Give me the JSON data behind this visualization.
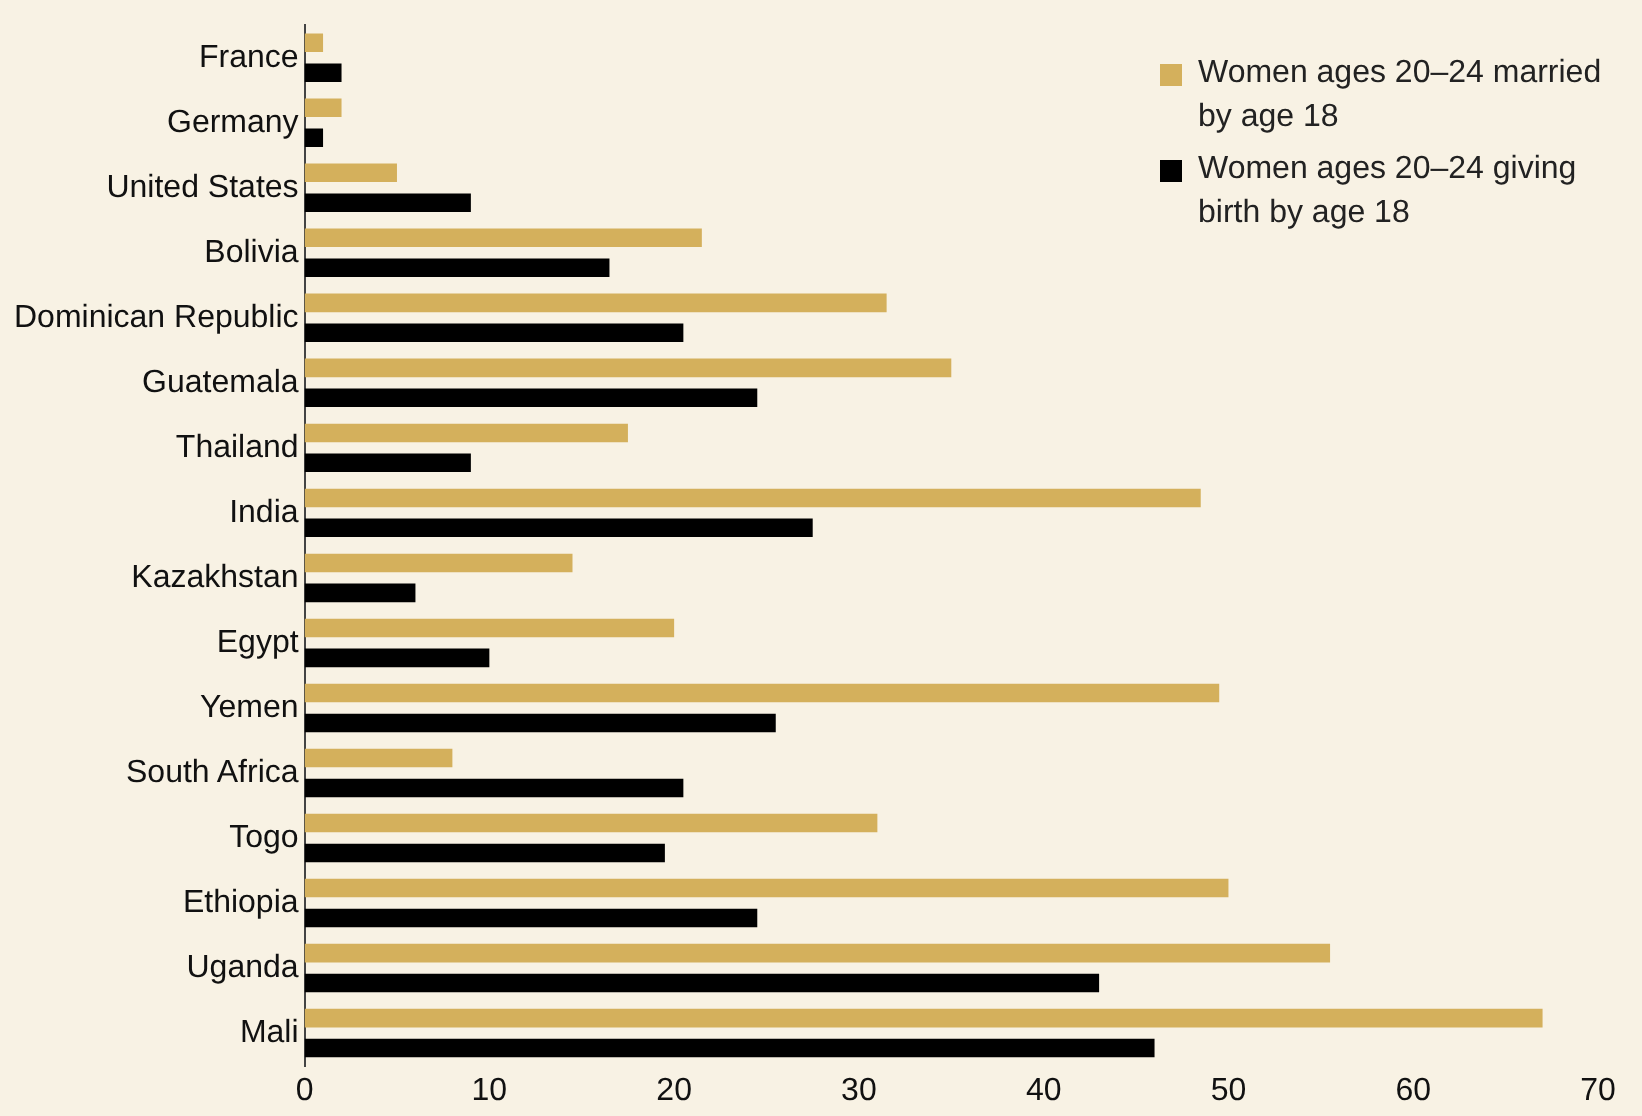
{
  "chart_data": {
    "type": "bar",
    "orientation": "horizontal",
    "categories": [
      "France",
      "Germany",
      "United States",
      "Bolivia",
      "Dominican Republic",
      "Guatemala",
      "Thailand",
      "India",
      "Kazakhstan",
      "Egypt",
      "Yemen",
      "South Africa",
      "Togo",
      "Ethiopia",
      "Uganda",
      "Mali"
    ],
    "series": [
      {
        "name": "Women ages 20–24 married by age 18",
        "color": "#d4b05c",
        "values": [
          1,
          2,
          5,
          21.5,
          31.5,
          35,
          17.5,
          48.5,
          14.5,
          20,
          49.5,
          8,
          31,
          50,
          55.5,
          67
        ]
      },
      {
        "name": "Women ages 20–24 giving birth by age 18",
        "color": "#000000",
        "values": [
          2,
          1,
          9,
          16.5,
          20.5,
          24.5,
          9,
          27.5,
          6,
          10,
          25.5,
          20.5,
          19.5,
          24.5,
          43,
          46
        ]
      }
    ],
    "xlim": [
      0,
      70
    ],
    "xticks": [
      0,
      10,
      20,
      30,
      40,
      50,
      60,
      70
    ],
    "grid": false,
    "legend": "top right"
  }
}
